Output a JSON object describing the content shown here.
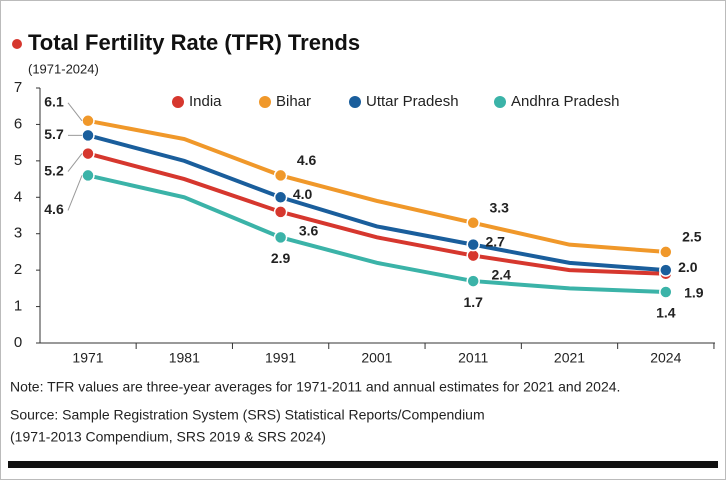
{
  "chart_data": {
    "type": "line",
    "title": "Total Fertility Rate (TFR) Trends",
    "subtitle": "(1971-2024)",
    "categories": [
      "1971",
      "1981",
      "1991",
      "2001",
      "2011",
      "2021",
      "2024"
    ],
    "series": [
      {
        "name": "India",
        "color": "#d6372e",
        "values": [
          5.2,
          4.5,
          3.6,
          2.9,
          2.4,
          2.0,
          1.9
        ],
        "value_labels": [
          "5.2",
          null,
          "3.6",
          null,
          "2.4",
          null,
          "1.9"
        ]
      },
      {
        "name": "Bihar",
        "color": "#f0982a",
        "values": [
          6.1,
          5.6,
          4.6,
          3.9,
          3.3,
          2.7,
          2.5
        ],
        "value_labels": [
          "6.1",
          null,
          "4.6",
          null,
          "3.3",
          null,
          "2.5"
        ]
      },
      {
        "name": "Uttar Pradesh",
        "color": "#1a5e9c",
        "values": [
          5.7,
          5.0,
          4.0,
          3.2,
          2.7,
          2.2,
          2.0
        ],
        "value_labels": [
          "5.7",
          null,
          "4.0",
          null,
          "2.7",
          null,
          "2.0"
        ]
      },
      {
        "name": "Andhra Pradesh",
        "color": "#3bb3a8",
        "values": [
          4.6,
          4.0,
          2.9,
          2.2,
          1.7,
          1.5,
          1.4
        ],
        "value_labels": [
          "4.6",
          null,
          "2.9",
          null,
          "1.7",
          null,
          "1.4"
        ]
      }
    ],
    "ylim": [
      0,
      7
    ],
    "yticks": [
      0,
      1,
      2,
      3,
      4,
      5,
      6,
      7
    ],
    "grid": false,
    "notes": [
      "Note: TFR values are three-year averages for 1971-2011 and annual estimates for 2021 and 2024.",
      "Source: Sample Registration System (SRS) Statistical Reports/Compendium",
      "(1971-2013 Compendium, SRS 2019 & SRS 2024)"
    ]
  }
}
